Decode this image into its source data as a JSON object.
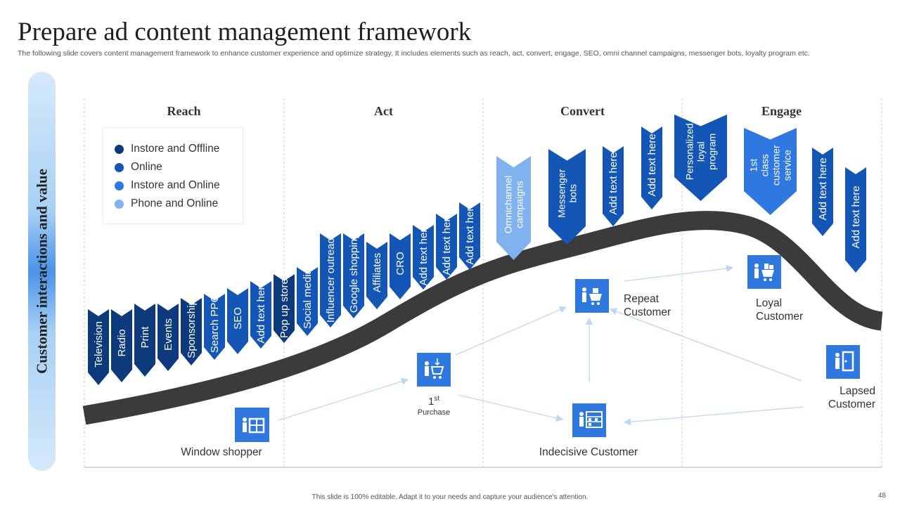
{
  "title": "Prepare ad content management framework",
  "subtitle": "The following slide covers content management framework to enhance customer experience and optimize strategy, It includes elements such as reach, act, convert,  engage, SEO,  omni channel campaigns, messenger bots, loyalty program etc.",
  "side_label": "Customer interactions and value",
  "stages": [
    "Reach",
    "Act",
    "Convert",
    "Engage"
  ],
  "legend": [
    {
      "label": "Instore and Offline",
      "color": "#0c3a7c"
    },
    {
      "label": "Online",
      "color": "#1356b5"
    },
    {
      "label": "Instore and Online",
      "color": "#2e78df"
    },
    {
      "label": "Phone and Online",
      "color": "#7fb2ee"
    }
  ],
  "chevrons": [
    {
      "label": "Television",
      "color": "#0c3a7c"
    },
    {
      "label": "Radio",
      "color": "#0c3a7c"
    },
    {
      "label": "Print",
      "color": "#0c3a7c"
    },
    {
      "label": "Events",
      "color": "#0c3a7c"
    },
    {
      "label": "Sponsorship",
      "color": "#0c3a7c"
    },
    {
      "label": "Search PPC",
      "color": "#1356b5"
    },
    {
      "label": "SEO",
      "color": "#1356b5"
    },
    {
      "label": "Add text here",
      "color": "#1356b5"
    },
    {
      "label": "Pop up stores",
      "color": "#0c3a7c"
    },
    {
      "label": "Social media",
      "color": "#1356b5"
    },
    {
      "label": "Influencer outreach",
      "color": "#1356b5"
    },
    {
      "label": "Google shopping",
      "color": "#1356b5"
    },
    {
      "label": "Affiliates",
      "color": "#1356b5"
    },
    {
      "label": "CRO",
      "color": "#1356b5"
    },
    {
      "label": "Add text here",
      "color": "#1356b5"
    },
    {
      "label": "Add text here",
      "color": "#1356b5"
    },
    {
      "label": "Add text here",
      "color": "#1356b5"
    },
    {
      "label": "Omnichannel campaigns",
      "color": "#7fb2ee"
    },
    {
      "label": "Messenger bots",
      "color": "#1356b5"
    },
    {
      "label": "Add text here",
      "color": "#1356b5"
    },
    {
      "label": "Add text here",
      "color": "#1356b5"
    },
    {
      "label": "Personalized loyal program",
      "color": "#1356b5"
    },
    {
      "label": "1st class customer service",
      "color": "#2e78df"
    },
    {
      "label": "Add text here",
      "color": "#1356b5"
    },
    {
      "label": "Add text here",
      "color": "#1356b5"
    }
  ],
  "nodes": {
    "window_shopper": "Window shopper",
    "first_purchase": "1st",
    "first_purchase_sub": "Purchase",
    "repeat_customer": "Repeat Customer",
    "loyal_customer": "Loyal Customer",
    "lapsed_customer": "Lapsed Customer",
    "indecisive_customer": "Indecisive Customer"
  },
  "colors": {
    "curve": "#3b3b3b",
    "icon_bg": "#2e78df",
    "arrow": "#bcd8f3",
    "divider": "#c9c9c9"
  },
  "footer": "This slide is 100% editable.  Adapt it to your needs and capture your audience's attention.",
  "page_number": "48"
}
